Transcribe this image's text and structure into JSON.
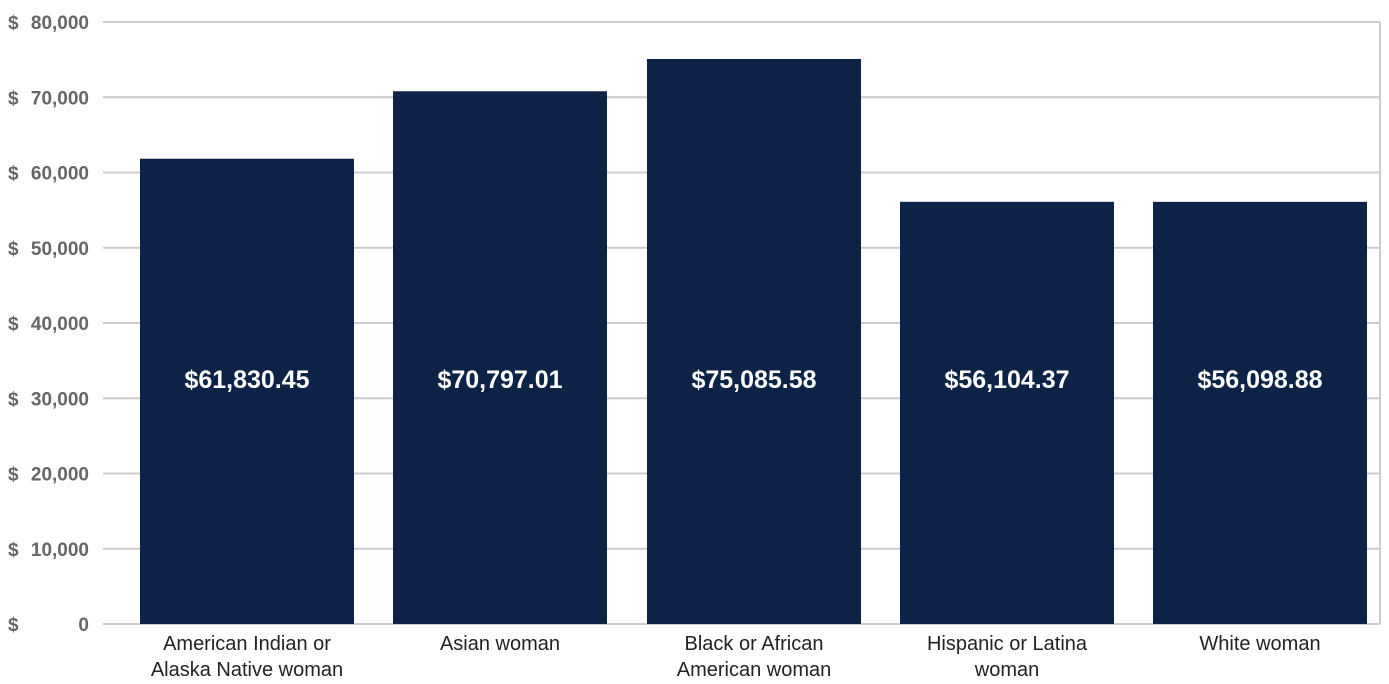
{
  "chart_data": {
    "type": "bar",
    "title": "",
    "xlabel": "",
    "ylabel": "",
    "ylim": [
      0,
      80000
    ],
    "grid": true,
    "colors": {
      "bar": "#0c2347",
      "grid": "#cccccc",
      "tick_text": "#666666",
      "category_text": "#222222",
      "value_text": "#ffffff"
    },
    "categories": [
      [
        "American Indian or",
        "Alaska Native woman"
      ],
      [
        "Asian woman"
      ],
      [
        "Black or African",
        "American woman"
      ],
      [
        "Hispanic or Latina",
        "woman"
      ],
      [
        "White woman"
      ]
    ],
    "values": [
      61830.45,
      70797.01,
      75085.58,
      56104.37,
      56098.88
    ],
    "value_labels": [
      "$61,830.45",
      "$70,797.01",
      "$75,085.58",
      "$56,104.37",
      "$56,098.88"
    ],
    "y_ticks": [
      {
        "value": 0,
        "dollar": "$",
        "number": "0"
      },
      {
        "value": 10000,
        "dollar": "$",
        "number": "10,000"
      },
      {
        "value": 20000,
        "dollar": "$",
        "number": "20,000"
      },
      {
        "value": 30000,
        "dollar": "$",
        "number": "30,000"
      },
      {
        "value": 40000,
        "dollar": "$",
        "number": "40,000"
      },
      {
        "value": 50000,
        "dollar": "$",
        "number": "50,000"
      },
      {
        "value": 60000,
        "dollar": "$",
        "number": "60,000"
      },
      {
        "value": 70000,
        "dollar": "$",
        "number": "70,000"
      },
      {
        "value": 80000,
        "dollar": "$",
        "number": "80,000"
      }
    ]
  }
}
